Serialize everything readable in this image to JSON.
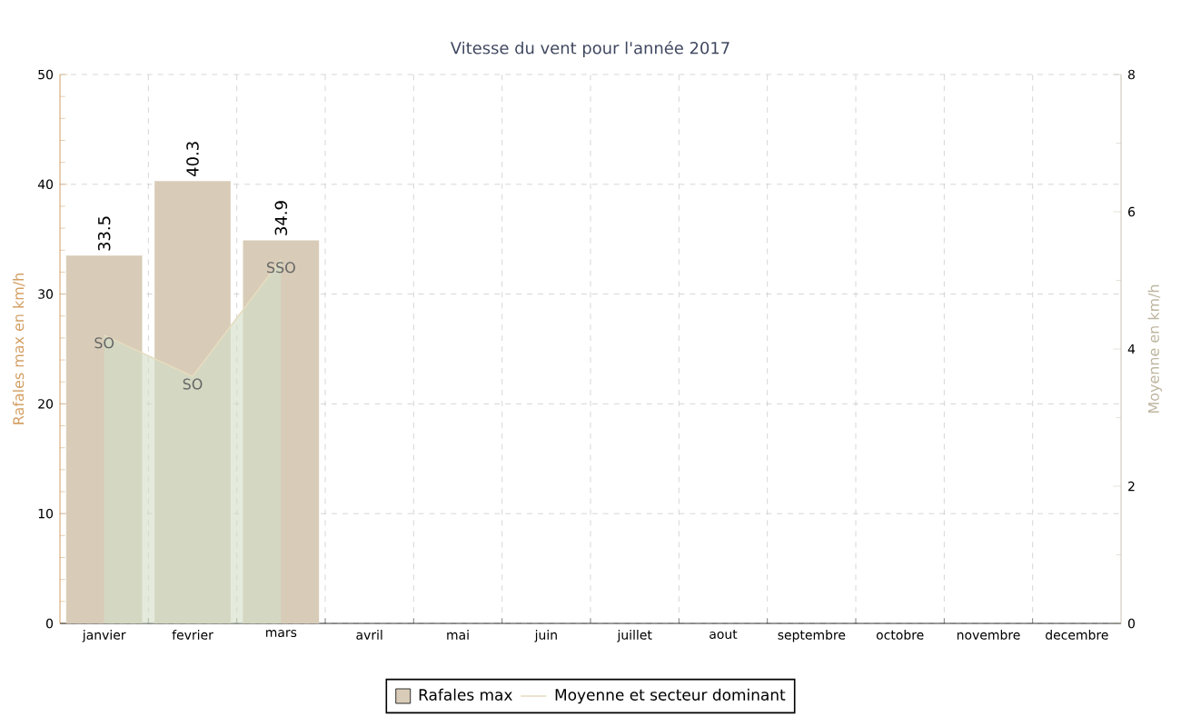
{
  "chart_data": {
    "type": "bar",
    "title": "Vitesse du vent pour l'année 2017",
    "ylabel": "Rafales max en km/h",
    "y2label": "Moyenne en km/h",
    "categories": [
      "janvier",
      "fevrier",
      "mars",
      "avril",
      "mai",
      "juin",
      "juillet",
      "aout",
      "septembre",
      "octobre",
      "novembre",
      "decembre"
    ],
    "series": [
      {
        "name": "Rafales max",
        "color": "#d8ccb8",
        "values": [
          33.5,
          40.3,
          34.9,
          null,
          null,
          null,
          null,
          null,
          null,
          null,
          null,
          null
        ],
        "value_labels": [
          "33.5",
          "40.3",
          "34.9",
          null,
          null,
          null,
          null,
          null,
          null,
          null,
          null,
          null
        ]
      },
      {
        "name": "Moyenne et secteur dominant",
        "type": "area",
        "axis": "y2",
        "color": "#e6dcc0",
        "values": [
          4.2,
          3.6,
          5.3,
          null,
          null,
          null,
          null,
          null,
          null,
          null,
          null,
          null
        ]
      }
    ],
    "annotations": [
      "SO",
      "SO",
      "SSO"
    ],
    "ylim": [
      0,
      50
    ],
    "yticks": [
      0,
      10,
      20,
      30,
      40,
      50
    ],
    "y2lim": [
      0,
      8
    ],
    "y2ticks": [
      0,
      2,
      4,
      6,
      8
    ],
    "grid": true,
    "legend": "bottom"
  }
}
